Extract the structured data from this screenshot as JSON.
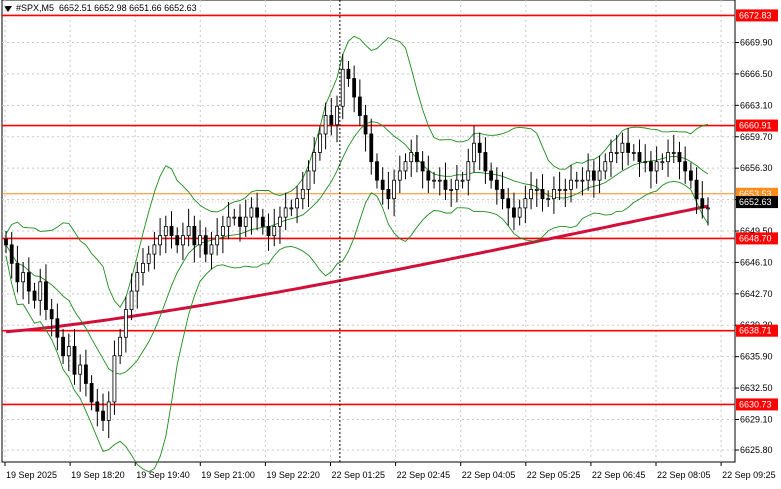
{
  "window": {
    "symbol": "#SPX,M5",
    "ohlc": "6652.51 6652.98 6651.66 6652.63"
  },
  "colors": {
    "candle": "#000000",
    "bands": "#1e8c1e",
    "ma": "#d0103a",
    "level": "#ff0000",
    "level_weak": "#ff8c1a",
    "current_price_tag": "#000000",
    "grid": "#c8c8c8"
  },
  "chart_data": {
    "type": "candlestick",
    "ylim": [
      6624.5,
      6674.5
    ],
    "y_ticks": [
      "6669.90",
      "6666.50",
      "6663.10",
      "6659.70",
      "6656.30",
      "6652.90",
      "6649.50",
      "6646.10",
      "6642.70",
      "6639.30",
      "6635.90",
      "6632.50",
      "6629.10",
      "6625.80"
    ],
    "y_tick_values": [
      6669.9,
      6666.5,
      6663.1,
      6659.7,
      6656.3,
      6652.9,
      6649.5,
      6646.1,
      6642.7,
      6639.3,
      6635.9,
      6632.5,
      6629.1,
      6625.8
    ],
    "x_labels": [
      "19 Sep 2025",
      "19 Sep 18:20",
      "19 Sep 19:40",
      "19 Sep 21:00",
      "19 Sep 22:20",
      "22 Sep 01:25",
      "22 Sep 02:45",
      "22 Sep 04:05",
      "22 Sep 05:25",
      "22 Sep 06:45",
      "22 Sep 08:05",
      "22 Sep 09:25"
    ],
    "levels": [
      {
        "label": "6672.83",
        "value": 6672.83,
        "style": "strong"
      },
      {
        "label": "6660.91",
        "value": 6660.91,
        "style": "strong"
      },
      {
        "label": "6653.53",
        "value": 6653.53,
        "style": "weak"
      },
      {
        "label": "6648.70",
        "value": 6648.7,
        "style": "strong"
      },
      {
        "label": "6638.71",
        "value": 6638.71,
        "style": "strong"
      },
      {
        "label": "6630.73",
        "value": 6630.73,
        "style": "strong"
      }
    ],
    "current_price": {
      "label": "6652.63",
      "value": 6652.63
    },
    "session_break_index": 58,
    "candles_close": [
      6648,
      6646,
      6644,
      6645,
      6643,
      6642,
      6644,
      6641,
      6640,
      6638,
      6636,
      6637,
      6634,
      6635,
      6633,
      6631,
      6630,
      6629,
      6631,
      6636,
      6638,
      6641,
      6643,
      6645,
      6646,
      6647,
      6648,
      6649,
      6650,
      6649,
      6648,
      6649,
      6650,
      6648,
      6649,
      6647,
      6648,
      6649,
      6650,
      6651,
      6651,
      6650,
      6651,
      6652,
      6651,
      6650,
      6649,
      6650,
      6651,
      6652,
      6652,
      6653,
      6654,
      6656,
      6658,
      6660,
      6662,
      6661,
      6663,
      6667,
      6666,
      6664,
      6662,
      6660,
      6657,
      6655,
      6654,
      6653,
      6655,
      6656,
      6657,
      6658,
      6657,
      6656,
      6655,
      6655,
      6655,
      6654,
      6654,
      6655,
      6655,
      6657,
      6659,
      6658,
      6656,
      6655,
      6654,
      6653,
      6652,
      6651,
      6652,
      6653,
      6654,
      6654,
      6653,
      6653,
      6654,
      6654,
      6654,
      6655,
      6655,
      6655,
      6656,
      6655,
      6656,
      6657,
      6658,
      6658,
      6659,
      6658,
      6658,
      6657,
      6657,
      6656,
      6657,
      6657,
      6658,
      6658,
      6657,
      6656,
      6655,
      6653,
      6652,
      6652
    ],
    "ma_start": 6638.6,
    "ma_end": 6652.2,
    "upper_band_start": 6648.0,
    "lower_band_start": 6646.0
  }
}
